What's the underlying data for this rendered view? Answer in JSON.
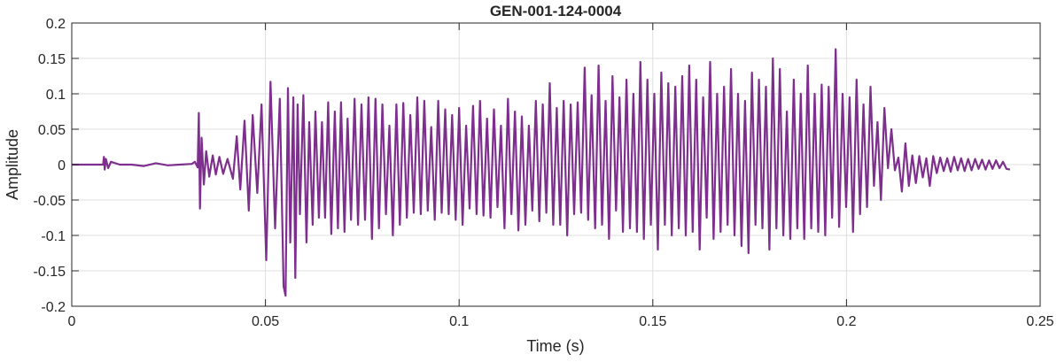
{
  "chart_data": {
    "type": "line",
    "title": "GEN-001-124-0004",
    "xlabel": "Time (s)",
    "ylabel": "Amplitude",
    "xlim": [
      0,
      0.25
    ],
    "ylim": [
      -0.2,
      0.2
    ],
    "grid": true,
    "xticks": [
      0,
      0.05,
      0.1,
      0.15,
      0.2,
      0.25
    ],
    "xtick_labels": [
      "0",
      "0.05",
      "0.1",
      "0.15",
      "0.2",
      "0.25"
    ],
    "yticks": [
      -0.2,
      -0.15,
      -0.1,
      -0.05,
      0,
      0.05,
      0.1,
      0.15,
      0.2
    ],
    "ytick_labels": [
      "-0.2",
      "-0.15",
      "-0.1",
      "-0.05",
      "0",
      "0.05",
      "0.1",
      "0.15",
      "0.2"
    ],
    "series": [
      {
        "color": "#7e2f8e",
        "x": [
          0,
          0.0031,
          0.0062,
          0.0081,
          0.0083,
          0.0085,
          0.0088,
          0.0094,
          0.0101,
          0.0124,
          0.0155,
          0.0186,
          0.0217,
          0.0248,
          0.0279,
          0.031,
          0.0318,
          0.0325,
          0.0328,
          0.0331,
          0.0335,
          0.0341,
          0.0347,
          0.0355,
          0.0364,
          0.0372,
          0.0381,
          0.0391,
          0.0402,
          0.0416,
          0.0426,
          0.0435,
          0.0446,
          0.0457,
          0.0467,
          0.0479,
          0.049,
          0.0502,
          0.0513,
          0.0525,
          0.0537,
          0.0547,
          0.0552,
          0.0558,
          0.0564,
          0.0572,
          0.0577,
          0.0583,
          0.0589,
          0.0598,
          0.0606,
          0.0613,
          0.0622,
          0.0629,
          0.0638,
          0.0646,
          0.0654,
          0.0662,
          0.067,
          0.0679,
          0.0687,
          0.0695,
          0.0704,
          0.0712,
          0.0721,
          0.073,
          0.0739,
          0.0748,
          0.0757,
          0.0766,
          0.0775,
          0.0784,
          0.0793,
          0.0802,
          0.0811,
          0.082,
          0.0829,
          0.0838,
          0.0847,
          0.0856,
          0.0865,
          0.0874,
          0.0883,
          0.0892,
          0.0901,
          0.091,
          0.0919,
          0.0928,
          0.0937,
          0.0946,
          0.0955,
          0.0964,
          0.0973,
          0.0982,
          0.0991,
          0.1,
          0.1009,
          0.1018,
          0.1027,
          0.1036,
          0.1045,
          0.1054,
          0.1063,
          0.1072,
          0.1081,
          0.109,
          0.1099,
          0.1108,
          0.1117,
          0.1126,
          0.1135,
          0.1144,
          0.1153,
          0.1162,
          0.1171,
          0.118,
          0.1189,
          0.1198,
          0.1207,
          0.1216,
          0.1225,
          0.1234,
          0.1243,
          0.1252,
          0.1261,
          0.127,
          0.1279,
          0.1288,
          0.1297,
          0.1306,
          0.1315,
          0.1324,
          0.1333,
          0.1342,
          0.1351,
          0.136,
          0.1369,
          0.1378,
          0.1387,
          0.1396,
          0.1405,
          0.1414,
          0.1423,
          0.1432,
          0.1441,
          0.145,
          0.1459,
          0.1468,
          0.1477,
          0.1486,
          0.1495,
          0.1504,
          0.1513,
          0.1522,
          0.1531,
          0.154,
          0.1549,
          0.1558,
          0.1567,
          0.1576,
          0.1585,
          0.1594,
          0.1603,
          0.1612,
          0.1621,
          0.163,
          0.1639,
          0.1648,
          0.1657,
          0.1666,
          0.1675,
          0.1684,
          0.1693,
          0.1702,
          0.1711,
          0.172,
          0.1729,
          0.1738,
          0.1747,
          0.1756,
          0.1765,
          0.1774,
          0.1783,
          0.1792,
          0.1801,
          0.181,
          0.1819,
          0.1828,
          0.1837,
          0.1846,
          0.1855,
          0.1864,
          0.1873,
          0.1882,
          0.1891,
          0.19,
          0.1909,
          0.1918,
          0.1927,
          0.1936,
          0.1945,
          0.1954,
          0.1963,
          0.1972,
          0.1981,
          0.199,
          0.1999,
          0.2008,
          0.2017,
          0.2026,
          0.2035,
          0.2044,
          0.2053,
          0.2062,
          0.2071,
          0.208,
          0.2089,
          0.2098,
          0.2107,
          0.2116,
          0.2125,
          0.2134,
          0.2143,
          0.2152,
          0.2161,
          0.217,
          0.2179,
          0.2188,
          0.2197,
          0.2206,
          0.2215,
          0.2224,
          0.2233,
          0.2242,
          0.2251,
          0.226,
          0.2269,
          0.2278,
          0.2287,
          0.2296,
          0.2305,
          0.2314,
          0.2323,
          0.2332,
          0.2341,
          0.235,
          0.2359,
          0.2368,
          0.2377,
          0.2386,
          0.2395,
          0.2404,
          0.2413,
          0.2422
        ],
        "y": [
          0,
          0,
          0,
          0,
          0.011,
          -0.007,
          0.008,
          -0.005,
          0.004,
          0,
          0,
          -0.002,
          0.002,
          -0.001,
          0,
          0.001,
          0.004,
          -0.004,
          0.073,
          -0.062,
          0.038,
          -0.028,
          0.019,
          -0.017,
          0.013,
          -0.014,
          0.011,
          -0.013,
          0.008,
          -0.02,
          0.04,
          -0.035,
          0.062,
          -0.065,
          0.07,
          -0.04,
          0.085,
          -0.135,
          0.117,
          -0.09,
          0.093,
          -0.172,
          -0.185,
          0.108,
          -0.11,
          0.095,
          -0.16,
          0.085,
          -0.07,
          0.098,
          -0.11,
          0.06,
          -0.085,
          0.075,
          -0.075,
          0.06,
          -0.075,
          0.088,
          -0.098,
          0.075,
          -0.09,
          0.088,
          -0.095,
          0.065,
          -0.078,
          0.093,
          -0.085,
          0.085,
          -0.078,
          0.095,
          -0.105,
          0.093,
          -0.09,
          0.085,
          -0.07,
          0.055,
          -0.1,
          0.085,
          -0.085,
          0.087,
          -0.075,
          0.07,
          -0.068,
          0.095,
          -0.07,
          0.09,
          -0.065,
          0.053,
          -0.078,
          0.09,
          -0.068,
          0.078,
          -0.07,
          0.07,
          -0.078,
          0.08,
          -0.085,
          0.055,
          -0.062,
          0.083,
          -0.07,
          0.09,
          -0.072,
          0.065,
          -0.075,
          0.078,
          -0.06,
          0.055,
          -0.09,
          0.093,
          -0.07,
          0.075,
          -0.093,
          0.068,
          -0.085,
          0.055,
          -0.065,
          0.09,
          -0.08,
          0.085,
          -0.068,
          0.115,
          -0.085,
          0.08,
          -0.085,
          0.09,
          -0.1,
          0.085,
          -0.07,
          0.088,
          -0.068,
          0.137,
          -0.078,
          0.098,
          -0.09,
          0.14,
          -0.085,
          0.09,
          -0.105,
          0.125,
          -0.065,
          0.095,
          -0.095,
          0.12,
          -0.09,
          0.1,
          -0.095,
          0.145,
          -0.105,
          0.12,
          -0.085,
          0.1,
          -0.12,
          0.13,
          -0.085,
          0.115,
          -0.1,
          0.11,
          -0.09,
          0.125,
          -0.1,
          0.14,
          -0.095,
          0.12,
          -0.12,
          0.095,
          -0.075,
          0.145,
          -0.105,
          0.1,
          -0.095,
          0.11,
          -0.085,
          0.135,
          -0.1,
          0.1,
          -0.115,
          0.09,
          -0.125,
          0.13,
          -0.085,
          0.12,
          -0.09,
          0.11,
          -0.12,
          0.15,
          -0.09,
          0.135,
          -0.1,
          0.075,
          -0.105,
          0.12,
          -0.09,
          0.1,
          -0.105,
          0.14,
          -0.09,
          0.1,
          -0.095,
          0.113,
          -0.1,
          0.11,
          -0.075,
          0.163,
          -0.088,
          0.1,
          -0.06,
          0.095,
          -0.095,
          0.12,
          -0.07,
          0.085,
          -0.06,
          0.11,
          -0.03,
          0.06,
          -0.05,
          0.08,
          -0.005,
          0.05,
          -0.008,
          0.01,
          -0.038,
          0.03,
          -0.03,
          0.013,
          -0.026,
          0.012,
          -0.018,
          0.009,
          -0.03,
          0.012,
          -0.012,
          0.01,
          -0.009,
          0.009,
          -0.01,
          0.011,
          -0.008,
          0.009,
          -0.009,
          0.008,
          -0.008,
          0.008,
          -0.006,
          0.007,
          -0.007,
          0.006,
          -0.006,
          0.006,
          -0.005,
          0.004,
          -0.006,
          -0.007
        ]
      }
    ]
  }
}
